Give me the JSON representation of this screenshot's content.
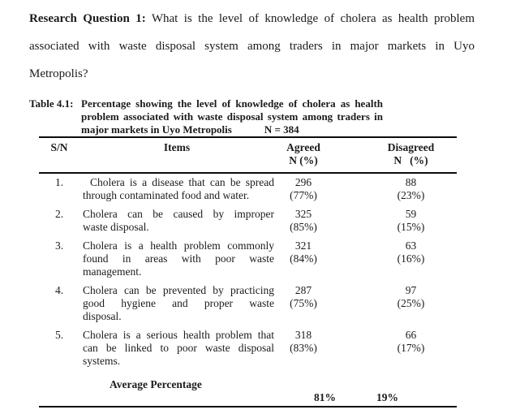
{
  "question": {
    "bold": "Research Question 1:",
    "line1_rest": "What is the level of knowledge of cholera as health problem",
    "line2": "associated with waste disposal system among traders in major markets in Uyo",
    "line3": "Metropolis?"
  },
  "caption": {
    "label": "Table 4.1:",
    "line1": "Percentage showing the level of knowledge of cholera as health",
    "line2": "problem associated with waste disposal system among traders in",
    "line3": "major markets in Uyo Metropolis",
    "n_total": "N = 384"
  },
  "table": {
    "header": {
      "sn": "S/N",
      "items": "Items",
      "agreed": "Agreed",
      "agreed_sub": "N (%)",
      "disagreed": "Disagreed",
      "disagreed_sub": "N   (%)"
    },
    "rows": [
      {
        "sn": "1.",
        "item_lines": [
          "Cholera is a disease that can be spread",
          "through contaminated food and water."
        ],
        "agreed_n": "296",
        "agreed_pct": "(77%)",
        "disagreed_n": "88",
        "disagreed_pct": "(23%)"
      },
      {
        "sn": "2.",
        "item_lines": [
          "Cholera can be caused by improper",
          "waste disposal."
        ],
        "agreed_n": "325",
        "agreed_pct": "(85%)",
        "disagreed_n": "59",
        "disagreed_pct": "(15%)"
      },
      {
        "sn": "3.",
        "item_lines": [
          "Cholera is a health problem commonly",
          "found in areas with poor waste",
          "management."
        ],
        "agreed_n": "321",
        "agreed_pct": "(84%)",
        "disagreed_n": "63",
        "disagreed_pct": "(16%)"
      },
      {
        "sn": "4.",
        "item_lines": [
          "Cholera can be prevented by practicing",
          "good hygiene and proper waste",
          "disposal."
        ],
        "agreed_n": "287",
        "agreed_pct": "(75%)",
        "disagreed_n": "97",
        "disagreed_pct": "(25%)"
      },
      {
        "sn": "5.",
        "item_lines": [
          "Cholera is a serious health problem that",
          "can be linked to poor waste disposal",
          "systems."
        ],
        "agreed_n": "318",
        "agreed_pct": "(83%)",
        "disagreed_n": "66",
        "disagreed_pct": "(17%)"
      }
    ],
    "footer": {
      "label": "Average Percentage",
      "agreed_avg": "81%",
      "disagreed_avg": "19%"
    }
  }
}
